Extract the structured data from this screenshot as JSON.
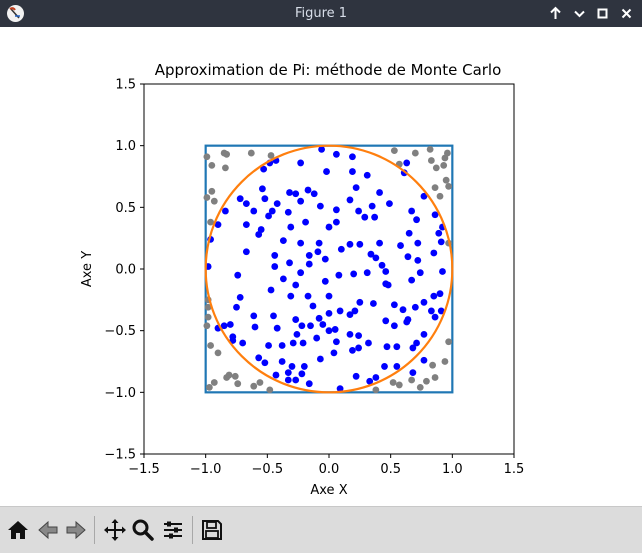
{
  "window": {
    "title": "Figure 1",
    "controls": [
      "up-arrow",
      "minimize",
      "maximize",
      "close"
    ]
  },
  "toolbar": {
    "buttons": [
      "home",
      "back",
      "forward",
      "pan",
      "zoom",
      "configure-subplots",
      "save"
    ]
  },
  "chart_data": {
    "type": "scatter",
    "title": "Approximation de Pi: méthode de Monte Carlo",
    "xlabel": "Axe X",
    "ylabel": "Axe Y",
    "xlim": [
      -1.5,
      1.5
    ],
    "ylim": [
      -1.5,
      1.5
    ],
    "xticks": [
      -1.5,
      -1.0,
      -0.5,
      0.0,
      0.5,
      1.0,
      1.5
    ],
    "yticks": [
      -1.5,
      -1.0,
      -0.5,
      0.0,
      0.5,
      1.0,
      1.5
    ],
    "xtick_labels": [
      "−1.5",
      "−1.0",
      "−0.5",
      "0.0",
      "0.5",
      "1.0",
      "1.5"
    ],
    "ytick_labels": [
      "−1.5",
      "−1.0",
      "−0.5",
      "0.0",
      "0.5",
      "1.0",
      "1.5"
    ],
    "grid": false,
    "square": {
      "x": [
        -1,
        1
      ],
      "y": [
        -1,
        1
      ],
      "color": "#1f77b4"
    },
    "circle": {
      "cx": 0,
      "cy": 0,
      "r": 1,
      "color": "#ff7f0e"
    },
    "series": [
      {
        "color": "#0000ff",
        "points": [
          [
            -0.54,
            0.65
          ],
          [
            -0.48,
            0.86
          ],
          [
            -0.43,
            0.88
          ],
          [
            -0.06,
            0.97
          ],
          [
            0.06,
            0.93
          ],
          [
            0.19,
            0.91
          ],
          [
            0.31,
            0.76
          ],
          [
            0.41,
            0.62
          ],
          [
            0.63,
            0.86
          ],
          [
            0.61,
            0.78
          ],
          [
            -0.72,
            0.57
          ],
          [
            -0.53,
            0.81
          ],
          [
            -0.23,
            0.86
          ],
          [
            -0.02,
            0.79
          ],
          [
            0.19,
            0.79
          ],
          [
            0.22,
            0.66
          ],
          [
            -0.17,
            0.64
          ],
          [
            -0.32,
            0.62
          ],
          [
            -0.27,
            0.61
          ],
          [
            -0.12,
            0.61
          ],
          [
            -0.23,
            0.55
          ],
          [
            -0.42,
            0.53
          ],
          [
            -0.07,
            0.51
          ],
          [
            -0.33,
            0.46
          ],
          [
            -0.49,
            0.43
          ],
          [
            -0.46,
            0.47
          ],
          [
            0.06,
            0.48
          ],
          [
            -0.31,
            0.34
          ],
          [
            0.17,
            0.56
          ],
          [
            0.24,
            0.47
          ],
          [
            0.29,
            0.42
          ],
          [
            0.35,
            0.51
          ],
          [
            0.37,
            0.42
          ],
          [
            0.49,
            0.53
          ],
          [
            0.67,
            0.47
          ],
          [
            0.71,
            0.4
          ],
          [
            0.86,
            0.44
          ],
          [
            0.92,
            0.34
          ],
          [
            0.89,
            0.29
          ],
          [
            -0.84,
            0.47
          ],
          [
            -0.9,
            0.36
          ],
          [
            -0.96,
            0.24
          ],
          [
            -0.61,
            0.47
          ],
          [
            -0.67,
            0.36
          ],
          [
            -0.55,
            0.32
          ],
          [
            -0.57,
            0.28
          ],
          [
            -0.37,
            0.23
          ],
          [
            -0.19,
            0.38
          ],
          [
            -0.23,
            0.21
          ],
          [
            -0.08,
            0.21
          ],
          [
            0.0,
            0.34
          ],
          [
            0.06,
            0.38
          ],
          [
            0.1,
            0.16
          ],
          [
            0.17,
            0.2
          ],
          [
            0.25,
            0.2
          ],
          [
            0.41,
            0.21
          ],
          [
            0.58,
            0.19
          ],
          [
            0.65,
            0.29
          ],
          [
            0.72,
            0.21
          ],
          [
            0.91,
            0.22
          ],
          [
            -0.67,
            0.14
          ],
          [
            -0.44,
            0.11
          ],
          [
            -0.32,
            0.05
          ],
          [
            -0.16,
            0.11
          ],
          [
            -0.09,
            0.14
          ],
          [
            -0.03,
            0.08
          ],
          [
            0.34,
            0.12
          ],
          [
            0.43,
            0.03
          ],
          [
            0.38,
            0.09
          ],
          [
            0.64,
            0.1
          ],
          [
            0.72,
            0.07
          ],
          [
            0.85,
            0.13
          ],
          [
            -0.98,
            0.02
          ],
          [
            -0.44,
            0.02
          ],
          [
            -0.23,
            -0.03
          ],
          [
            -0.16,
            0.04
          ],
          [
            -0.37,
            -0.08
          ],
          [
            -0.27,
            -0.13
          ],
          [
            -0.03,
            -0.1
          ],
          [
            0.08,
            -0.05
          ],
          [
            0.2,
            -0.04
          ],
          [
            0.31,
            -0.03
          ],
          [
            0.46,
            -0.02
          ],
          [
            0.67,
            -0.09
          ],
          [
            0.74,
            -0.03
          ],
          [
            0.92,
            -0.02
          ],
          [
            -0.47,
            -0.17
          ],
          [
            -0.31,
            -0.22
          ],
          [
            -0.17,
            -0.22
          ],
          [
            0.0,
            -0.22
          ],
          [
            -0.13,
            -0.3
          ],
          [
            0.09,
            -0.34
          ],
          [
            0.25,
            -0.27
          ],
          [
            0.46,
            -0.12
          ],
          [
            0.53,
            -0.29
          ],
          [
            0.85,
            -0.22
          ],
          [
            0.9,
            -0.2
          ],
          [
            0.48,
            -0.13
          ],
          [
            0.36,
            -0.28
          ],
          [
            -0.72,
            -0.23
          ],
          [
            -0.75,
            -0.31
          ],
          [
            -0.8,
            -0.45
          ],
          [
            -0.85,
            -0.46
          ],
          [
            -0.9,
            -0.48
          ],
          [
            -0.61,
            -0.38
          ],
          [
            -0.6,
            -0.47
          ],
          [
            -0.45,
            -0.38
          ],
          [
            -0.27,
            -0.41
          ],
          [
            -0.22,
            -0.46
          ],
          [
            -0.08,
            -0.4
          ],
          [
            0.0,
            -0.36
          ],
          [
            0.17,
            -0.37
          ],
          [
            0.21,
            -0.34
          ],
          [
            0.46,
            -0.42
          ],
          [
            0.6,
            -0.33
          ],
          [
            0.7,
            -0.31
          ],
          [
            0.77,
            -0.27
          ],
          [
            0.63,
            -0.43
          ],
          [
            0.77,
            -0.53
          ],
          [
            0.86,
            -0.39
          ],
          [
            0.83,
            -0.34
          ],
          [
            0.91,
            -0.34
          ],
          [
            -0.42,
            -0.48
          ],
          [
            -0.05,
            -0.45
          ],
          [
            0.05,
            -0.49
          ],
          [
            0.0,
            -0.5
          ],
          [
            -0.1,
            -0.56
          ],
          [
            -0.26,
            -0.53
          ],
          [
            0.17,
            -0.53
          ],
          [
            0.24,
            -0.54
          ],
          [
            0.53,
            -0.46
          ],
          [
            0.64,
            -0.41
          ],
          [
            -0.78,
            -0.55
          ],
          [
            -0.78,
            -0.58
          ],
          [
            -0.49,
            -0.62
          ],
          [
            -0.38,
            -0.62
          ],
          [
            -0.29,
            -0.6
          ],
          [
            -0.21,
            -0.6
          ],
          [
            0.24,
            -0.64
          ],
          [
            0.32,
            -0.6
          ],
          [
            0.71,
            -0.6
          ],
          [
            0.68,
            -0.64
          ],
          [
            -0.57,
            -0.72
          ],
          [
            -0.38,
            -0.75
          ],
          [
            -0.3,
            -0.79
          ],
          [
            -0.2,
            -0.79
          ],
          [
            -0.07,
            -0.73
          ],
          [
            0.04,
            -0.68
          ],
          [
            0.06,
            -0.59
          ],
          [
            0.19,
            -0.66
          ],
          [
            0.47,
            -0.63
          ],
          [
            0.55,
            -0.63
          ],
          [
            0.55,
            -0.79
          ],
          [
            -0.22,
            -0.85
          ],
          [
            -0.33,
            -0.84
          ],
          [
            -0.52,
            -0.76
          ],
          [
            -0.43,
            -0.86
          ],
          [
            -0.33,
            -0.9
          ],
          [
            -0.27,
            -0.9
          ],
          [
            -0.16,
            -0.93
          ],
          [
            0.09,
            -0.97
          ],
          [
            0.22,
            -0.87
          ],
          [
            0.33,
            -0.91
          ],
          [
            0.38,
            -0.88
          ],
          [
            0.45,
            -0.79
          ],
          [
            0.68,
            -0.84
          ],
          [
            0.77,
            -0.74
          ],
          [
            -0.15,
            -0.46
          ],
          [
            -0.74,
            -0.05
          ],
          [
            -0.52,
            0.57
          ],
          [
            -0.67,
            0.53
          ],
          [
            0.77,
            0.59
          ],
          [
            -0.7,
            -0.6
          ]
        ]
      },
      {
        "color": "#808080",
        "points": [
          [
            -0.99,
            0.91
          ],
          [
            -0.95,
            0.84
          ],
          [
            -0.85,
            0.94
          ],
          [
            -0.83,
            0.93
          ],
          [
            -0.63,
            0.94
          ],
          [
            -0.47,
            0.92
          ],
          [
            -0.84,
            0.82
          ],
          [
            -0.93,
            0.55
          ],
          [
            -0.95,
            0.63
          ],
          [
            -0.96,
            0.38
          ],
          [
            -0.99,
            0.58
          ],
          [
            0.53,
            0.96
          ],
          [
            0.57,
            0.85
          ],
          [
            0.7,
            0.94
          ],
          [
            0.83,
            0.88
          ],
          [
            0.87,
            0.82
          ],
          [
            0.93,
            0.84
          ],
          [
            0.94,
            0.9
          ],
          [
            0.96,
            0.94
          ],
          [
            0.82,
            0.97
          ],
          [
            0.86,
            0.66
          ],
          [
            0.9,
            0.59
          ],
          [
            0.97,
            0.21
          ],
          [
            0.97,
            -0.59
          ],
          [
            0.94,
            -0.75
          ],
          [
            0.84,
            -0.78
          ],
          [
            0.86,
            -0.88
          ],
          [
            0.79,
            -0.91
          ],
          [
            0.74,
            -0.96
          ],
          [
            0.67,
            -0.9
          ],
          [
            0.57,
            -0.94
          ],
          [
            0.38,
            -0.98
          ],
          [
            0.52,
            -0.92
          ],
          [
            -0.48,
            -0.98
          ],
          [
            -0.56,
            -0.92
          ],
          [
            -0.61,
            -0.95
          ],
          [
            -0.74,
            -0.93
          ],
          [
            -0.76,
            -0.87
          ],
          [
            -0.81,
            -0.86
          ],
          [
            -0.83,
            -0.88
          ],
          [
            -0.9,
            -0.68
          ],
          [
            -0.96,
            -0.62
          ],
          [
            -0.99,
            -0.46
          ],
          [
            -0.98,
            -0.39
          ],
          [
            -0.98,
            -0.31
          ],
          [
            -0.98,
            -0.25
          ],
          [
            -0.93,
            -0.92
          ],
          [
            -0.97,
            -0.96
          ],
          [
            0.97,
            0.67
          ],
          [
            0.95,
            0.72
          ]
        ]
      }
    ]
  }
}
